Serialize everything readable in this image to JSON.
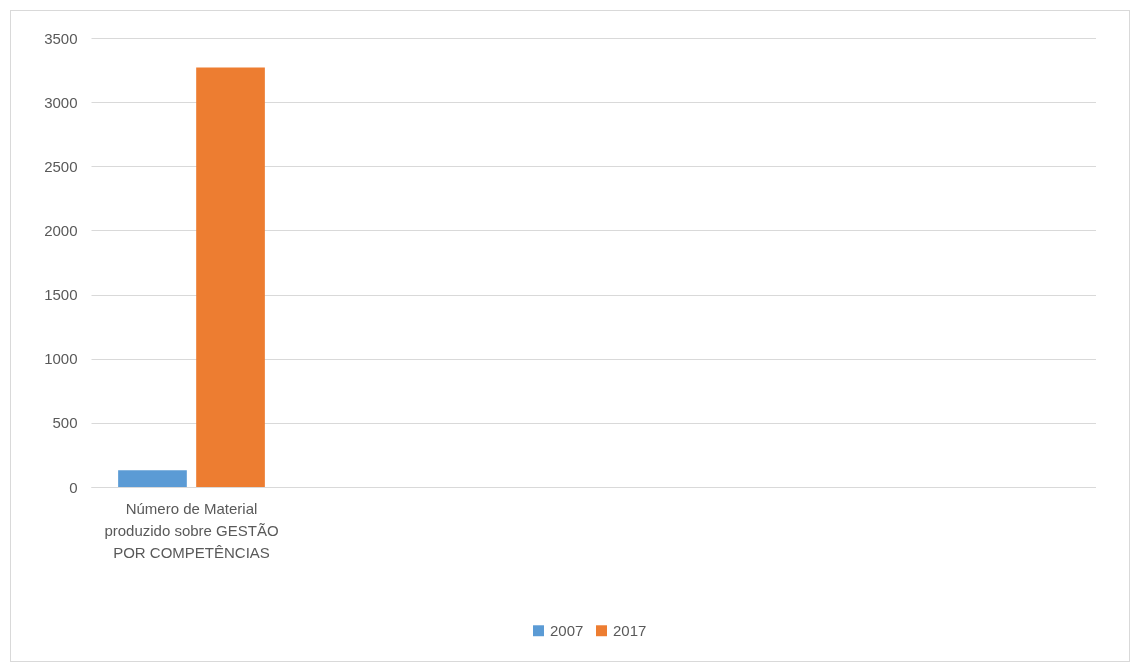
{
  "chart_data": {
    "type": "bar",
    "categories": [
      "Número de Material produzido sobre GESTÃO POR COMPETÊNCIAS",
      null,
      null,
      null,
      null
    ],
    "series": [
      {
        "name": "2007",
        "color": "#5b9bd5",
        "values": [
          130,
          null,
          null,
          null,
          null
        ]
      },
      {
        "name": "2017",
        "color": "#ed7d31",
        "values": [
          3270,
          null,
          null,
          null,
          null
        ]
      }
    ],
    "ylim": [
      0,
      3500
    ],
    "yticks": [
      0,
      500,
      1000,
      1500,
      2000,
      2500,
      3000,
      3500
    ],
    "grid": "y",
    "legend": "bottom"
  }
}
